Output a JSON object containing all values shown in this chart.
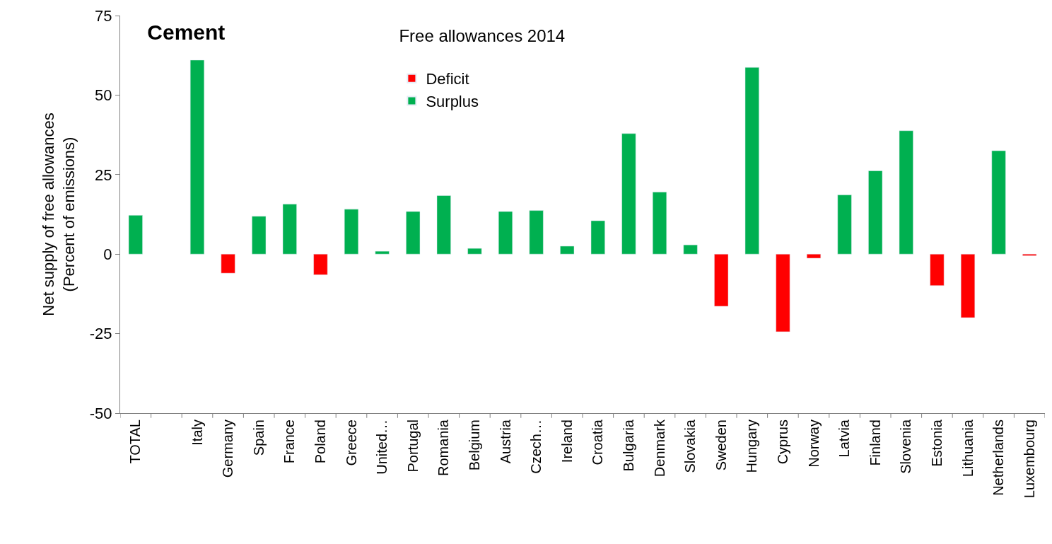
{
  "chart_data": {
    "type": "bar",
    "title": "Cement",
    "legend_title": "Free allowances 2014",
    "ylabel": "Net supply of free allowances\n(Percent of emissions)",
    "categories": [
      "TOTAL",
      null,
      "Italy",
      "Germany",
      "Spain",
      "France",
      "Poland",
      "Greece",
      "United…",
      "Portugal",
      "Romania",
      "Belgium",
      "Austria",
      "Czech…",
      "Ireland",
      "Croatia",
      "Bulgaria",
      "Denmark",
      "Slovakia",
      "Sweden",
      "Hungary",
      "Cyprus",
      "Norway",
      "Latvia",
      "Finland",
      "Slovenia",
      "Estonia",
      "Lithuania",
      "Netherlands",
      "Luxembourg"
    ],
    "stacked": true,
    "series": [
      {
        "name": "Deficit",
        "color": "#ff0000",
        "values": [
          null,
          null,
          null,
          -6,
          null,
          null,
          -6.5,
          null,
          null,
          null,
          null,
          null,
          null,
          null,
          null,
          null,
          null,
          null,
          null,
          -16.4,
          null,
          -24.4,
          -1.3,
          null,
          null,
          null,
          -9.9,
          -20,
          null,
          -0.5
        ]
      },
      {
        "name": "Surplus",
        "color": "#00b050",
        "values": [
          12.2,
          null,
          61,
          null,
          11.9,
          15.7,
          null,
          14.1,
          0.9,
          13.4,
          18.4,
          1.8,
          13.4,
          13.7,
          2.5,
          10.5,
          37.9,
          19.5,
          2.9,
          null,
          58.7,
          null,
          null,
          18.6,
          26.2,
          38.8,
          null,
          null,
          32.5,
          null
        ]
      }
    ],
    "ylim": [
      -50,
      75
    ],
    "yticks": [
      -50,
      -25,
      0,
      25,
      50,
      75
    ],
    "legend": "top"
  }
}
